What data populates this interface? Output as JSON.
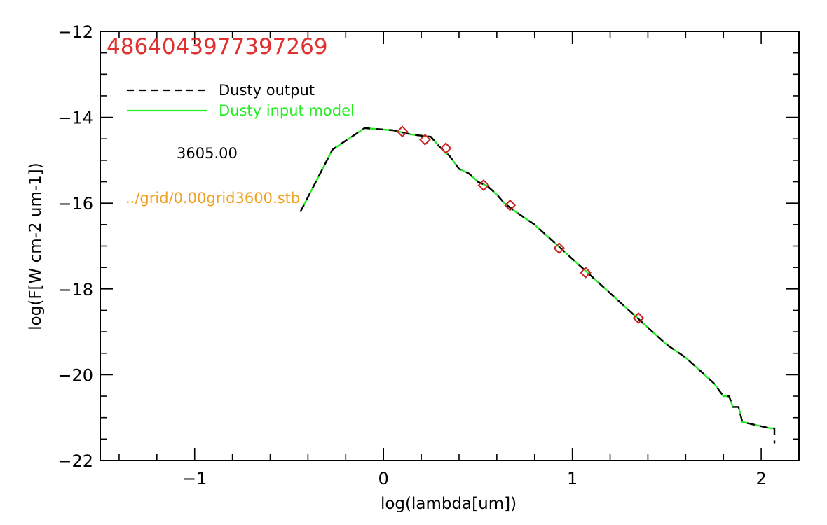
{
  "chart_data": {
    "type": "line",
    "title": "4864043977397269",
    "xlabel": "log(lambda[um])",
    "ylabel": "log(F[W cm-2 um-1])",
    "xlim": [
      -1.5,
      2.2
    ],
    "ylim": [
      -22,
      -12
    ],
    "xticks": [
      -1,
      0,
      1,
      2
    ],
    "xtick_labels": [
      "−1",
      "0",
      "1",
      "2"
    ],
    "yticks": [
      -22,
      -20,
      -18,
      -16,
      -14,
      -12
    ],
    "ytick_labels": [
      "−22",
      "−20",
      "−18",
      "−16",
      "−14",
      "−12"
    ],
    "legend_position": "top-left",
    "grid": false,
    "colors": {
      "title": "#e03030",
      "output": "#000000",
      "input": "#22ee22",
      "points": "#cc2222",
      "file_label": "#f0a020",
      "temp_label": "#000000"
    },
    "series": [
      {
        "name": "Dusty output",
        "style": "dashed",
        "x": [
          -0.44,
          -0.27,
          -0.1,
          0.05,
          0.15,
          0.25,
          0.3,
          0.35,
          0.4,
          0.45,
          0.5,
          0.55,
          0.6,
          0.64,
          0.67,
          0.7,
          0.8,
          0.9,
          1.0,
          1.1,
          1.2,
          1.3,
          1.4,
          1.5,
          1.6,
          1.7,
          1.75,
          1.8,
          1.83,
          1.85,
          1.88,
          1.9,
          1.95,
          2.0,
          2.05,
          2.07,
          2.07
        ],
        "y": [
          -16.2,
          -14.75,
          -14.25,
          -14.3,
          -14.4,
          -14.45,
          -14.7,
          -14.9,
          -15.2,
          -15.3,
          -15.5,
          -15.6,
          -15.8,
          -16.0,
          -16.1,
          -16.2,
          -16.5,
          -16.9,
          -17.3,
          -17.7,
          -18.1,
          -18.5,
          -18.9,
          -19.3,
          -19.6,
          -20.0,
          -20.2,
          -20.5,
          -20.5,
          -20.75,
          -20.75,
          -21.1,
          -21.15,
          -21.2,
          -21.25,
          -21.25,
          -21.6
        ]
      },
      {
        "name": "Dusty input model",
        "style": "solid",
        "x": [
          -0.44,
          -0.27,
          -0.1,
          0.05,
          0.15,
          0.25,
          0.3,
          0.35,
          0.4,
          0.45,
          0.5,
          0.55,
          0.6,
          0.64,
          0.67,
          0.7,
          0.8,
          0.9,
          1.0,
          1.1,
          1.2,
          1.3,
          1.4,
          1.5,
          1.6,
          1.7,
          1.75,
          1.8,
          1.83,
          1.85,
          1.88,
          1.9,
          1.95,
          2.0,
          2.05,
          2.07
        ],
        "y": [
          -16.2,
          -14.75,
          -14.25,
          -14.3,
          -14.4,
          -14.45,
          -14.7,
          -14.9,
          -15.2,
          -15.3,
          -15.5,
          -15.6,
          -15.8,
          -16.0,
          -16.1,
          -16.2,
          -16.5,
          -16.9,
          -17.3,
          -17.7,
          -18.1,
          -18.5,
          -18.9,
          -19.3,
          -19.6,
          -20.0,
          -20.2,
          -20.5,
          -20.5,
          -20.75,
          -20.75,
          -21.1,
          -21.15,
          -21.2,
          -21.25,
          -21.25
        ]
      }
    ],
    "points": {
      "marker": "diamond",
      "x": [
        0.1,
        0.22,
        0.33,
        0.53,
        0.67,
        0.93,
        1.07,
        1.35
      ],
      "y": [
        -14.33,
        -14.52,
        -14.72,
        -15.58,
        -16.05,
        -17.05,
        -17.62,
        -18.68
      ]
    },
    "annotations": [
      {
        "key": "temp",
        "text": "3605.00"
      },
      {
        "key": "file",
        "text": "../grid/0.00grid3600.stb"
      }
    ]
  }
}
